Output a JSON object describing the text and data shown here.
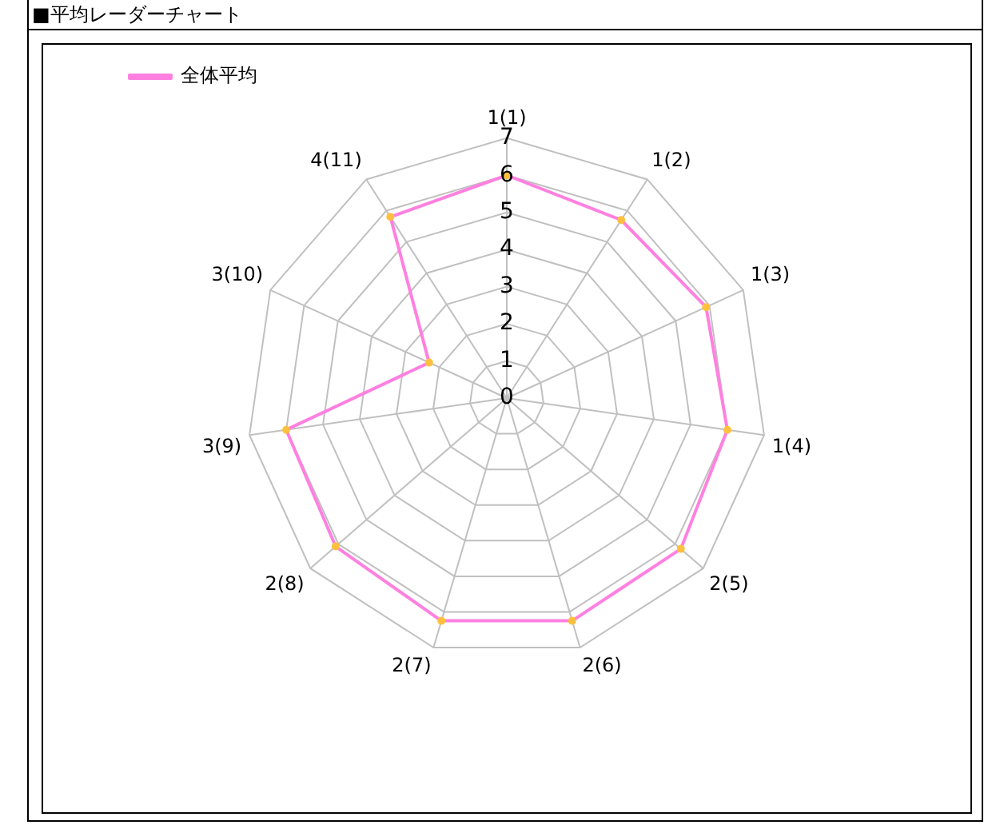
{
  "chart_data": {
    "type": "radar",
    "title": "■平均レーダーチャート",
    "categories": [
      "1(1)",
      "1(2)",
      "1(3)",
      "1(4)",
      "2(5)",
      "2(6)",
      "2(7)",
      "2(8)",
      "3(9)",
      "3(10)",
      "4(11)"
    ],
    "series": [
      {
        "name": "全体平均",
        "color": "#ff80e0",
        "values": [
          6.0,
          5.7,
          5.9,
          6.0,
          6.2,
          6.25,
          6.25,
          6.1,
          6.0,
          2.3,
          5.8
        ]
      }
    ],
    "ylim": [
      0,
      7
    ],
    "yticks": [
      0,
      1,
      2,
      3,
      4,
      5,
      6,
      7
    ],
    "grid": true,
    "legend": "top left",
    "marker": "circle",
    "line_style": "solid"
  }
}
